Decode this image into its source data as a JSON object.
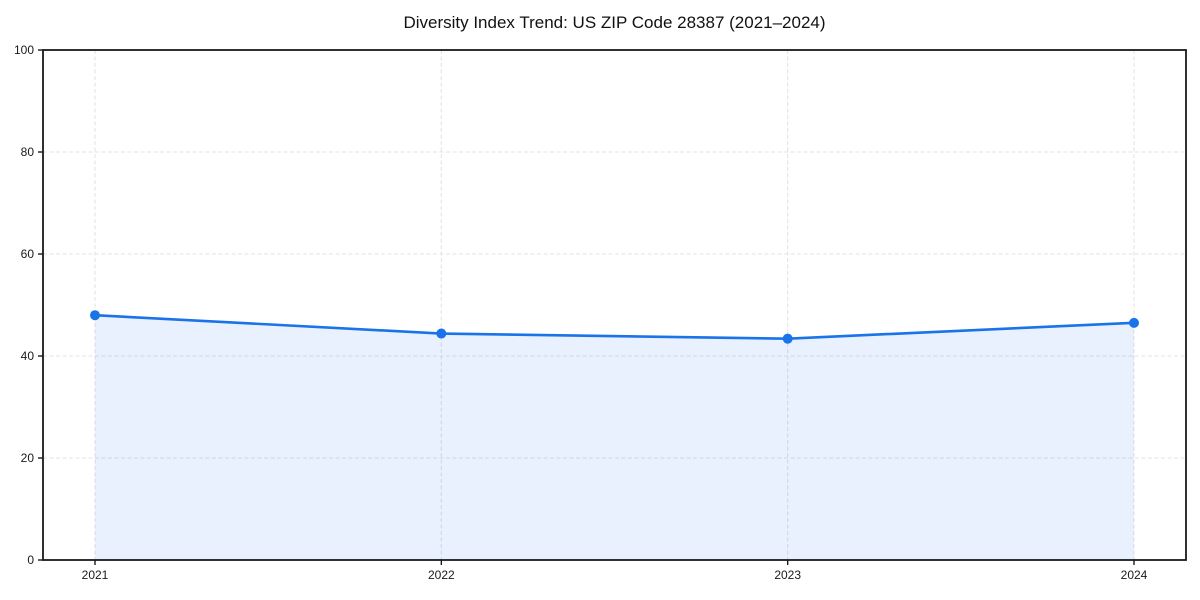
{
  "figure": {
    "background": "#ffffff"
  },
  "chart_data": {
    "type": "line",
    "title": "Diversity Index Trend: US ZIP Code 28387 (2021–2024)",
    "x": [
      "2021",
      "2022",
      "2023",
      "2024"
    ],
    "series": [
      {
        "name": "Diversity Index",
        "values": [
          48.0,
          44.4,
          43.4,
          46.5
        ]
      }
    ],
    "xlabel": "",
    "ylabel": "",
    "ylim": [
      0,
      100
    ],
    "yticks": [
      0,
      20,
      40,
      60,
      80,
      100
    ],
    "grid": true,
    "grid_style": "dashed",
    "legend_position": "none",
    "marker": "circle",
    "area_fill": true,
    "colors": {
      "line": "#1a73e8",
      "marker": "#1a73e8",
      "fill": "rgba(26,115,232,0.10)",
      "grid": "#e3e3e3",
      "spine": "#1a1a1a",
      "tick_label": "#1a1a1a",
      "title": "#111111"
    }
  }
}
